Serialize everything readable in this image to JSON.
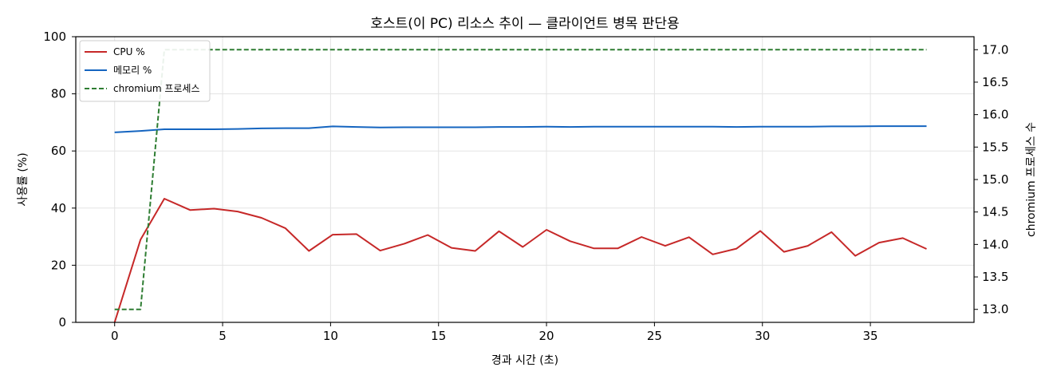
{
  "chart_data": {
    "type": "line",
    "title": "호스트(이 PC) 리소스 추이 — 클라이언트 병목 판단용",
    "xlabel": "경과 시간 (초)",
    "ylabel": "사용률 (%)",
    "y2label": "chromium 프로세스 수",
    "xlim": [
      -1.8,
      39.8
    ],
    "ylim": [
      0,
      100
    ],
    "y2lim": [
      12.8,
      17.2
    ],
    "xticks": [
      "0",
      "5",
      "10",
      "15",
      "20",
      "25",
      "30",
      "35"
    ],
    "yticks": [
      "0",
      "20",
      "40",
      "60",
      "80",
      "100"
    ],
    "y2ticks": [
      "13.0",
      "13.5",
      "14.0",
      "14.5",
      "15.0",
      "15.5",
      "16.0",
      "16.5",
      "17.0"
    ],
    "grid": true,
    "legend_position": "top-left",
    "x": [
      0,
      1.2,
      2.3,
      3.5,
      4.6,
      5.7,
      6.8,
      7.9,
      9.0,
      10.1,
      11.2,
      12.3,
      13.4,
      14.5,
      15.6,
      16.7,
      17.8,
      18.9,
      20.0,
      21.1,
      22.2,
      23.3,
      24.4,
      25.5,
      26.6,
      27.7,
      28.8,
      29.9,
      31.0,
      32.1,
      33.2,
      34.3,
      35.4,
      36.5,
      37.6
    ],
    "series": [
      {
        "name": "CPU %",
        "axis": "left",
        "color": "#c62828",
        "style": "solid",
        "values": [
          0,
          29,
          43.3,
          39.3,
          39.8,
          38.8,
          36.6,
          33,
          25,
          30.7,
          30.9,
          25.1,
          27.5,
          30.6,
          26.1,
          25,
          31.9,
          26.4,
          32.4,
          28.4,
          25.9,
          25.9,
          29.9,
          26.8,
          29.8,
          23.8,
          25.8,
          32,
          24.7,
          26.8,
          31.6,
          23.3,
          27.9,
          29.5,
          25.7
        ]
      },
      {
        "name": "메모리 %",
        "axis": "left",
        "color": "#1565c0",
        "style": "solid",
        "values": [
          66.5,
          67,
          67.6,
          67.6,
          67.6,
          67.7,
          67.9,
          68,
          68,
          68.6,
          68.4,
          68.2,
          68.3,
          68.3,
          68.3,
          68.3,
          68.4,
          68.4,
          68.5,
          68.4,
          68.5,
          68.5,
          68.5,
          68.5,
          68.5,
          68.5,
          68.4,
          68.5,
          68.5,
          68.5,
          68.6,
          68.6,
          68.7,
          68.7,
          68.7
        ]
      },
      {
        "name": "chromium 프로세스",
        "axis": "right",
        "color": "#2e7d32",
        "style": "dashed",
        "values": [
          13,
          13,
          17,
          17,
          17,
          17,
          17,
          17,
          17,
          17,
          17,
          17,
          17,
          17,
          17,
          17,
          17,
          17,
          17,
          17,
          17,
          17,
          17,
          17,
          17,
          17,
          17,
          17,
          17,
          17,
          17,
          17,
          17,
          17,
          17
        ]
      }
    ]
  }
}
